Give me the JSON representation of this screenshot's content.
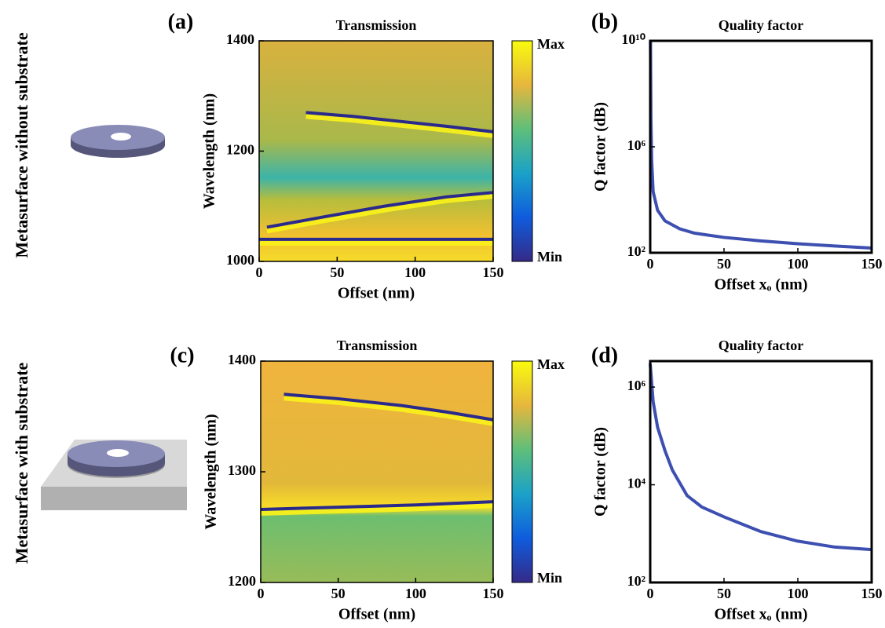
{
  "row_labels": [
    "Metasurface without substrate",
    "Metasurface with substrate"
  ],
  "chart_data": [
    {
      "type": "heatmap",
      "panel": "(a)",
      "title": "Transmission",
      "xlabel": "Offset (nm)",
      "ylabel": "Wavelength (nm)",
      "xlim": [
        0,
        150
      ],
      "ylim": [
        1000,
        1400
      ],
      "xticks": [
        0,
        50,
        100,
        150
      ],
      "yticks": [
        1000,
        1200,
        1400
      ],
      "colorbar": [
        "Max",
        "Min"
      ],
      "series": [
        {
          "color": "#2a2a8c",
          "x": [
            30,
            60,
            90,
            120,
            150
          ],
          "values": [
            1270,
            1263,
            1254,
            1245,
            1235
          ]
        },
        {
          "color": "#2a2a8c",
          "x": [
            5,
            40,
            80,
            120,
            150
          ],
          "values": [
            1062,
            1080,
            1100,
            1117,
            1125
          ]
        },
        {
          "color": "#2a2a8c",
          "x": [
            0,
            150
          ],
          "values": [
            1040,
            1040
          ]
        }
      ]
    },
    {
      "type": "line",
      "panel": "(b)",
      "title": "Quality factor",
      "xlabel": "Offset xₒ (nm)",
      "ylabel": "Q factor (dB)",
      "log_y": true,
      "xlim": [
        0,
        150
      ],
      "ylim": [
        100,
        10000000000
      ],
      "xticks": [
        0,
        50,
        100,
        150
      ],
      "yticks": [
        {
          "value": 100,
          "label": "10²"
        },
        {
          "value": 1000000,
          "label": "10⁶"
        },
        {
          "value": 10000000000,
          "label": "10¹⁰"
        }
      ],
      "series": [
        {
          "color": "#3d4fb0",
          "x": [
            0.2,
            0.5,
            1,
            2,
            5,
            10,
            20,
            30,
            50,
            75,
            100,
            125,
            150
          ],
          "values": [
            10000000000,
            10000000,
            300000,
            20000,
            4000,
            1600,
            800,
            550,
            380,
            280,
            220,
            180,
            150
          ]
        }
      ]
    },
    {
      "type": "heatmap",
      "panel": "(c)",
      "title": "Transmission",
      "xlabel": "Offset (nm)",
      "ylabel": "Wavelength (nm)",
      "xlim": [
        0,
        150
      ],
      "ylim": [
        1200,
        1400
      ],
      "xticks": [
        0,
        50,
        100,
        150
      ],
      "yticks": [
        1200,
        1300,
        1400
      ],
      "colorbar": [
        "Max",
        "Min"
      ],
      "series": [
        {
          "color": "#2a2a8c",
          "x": [
            15,
            50,
            90,
            120,
            150
          ],
          "values": [
            1370,
            1366,
            1360,
            1354,
            1347
          ]
        },
        {
          "color": "#2a2a8c",
          "x": [
            0,
            50,
            100,
            150
          ],
          "values": [
            1266,
            1268,
            1270,
            1273
          ]
        }
      ]
    },
    {
      "type": "line",
      "panel": "(d)",
      "title": "Quality factor",
      "xlabel": "Offset xₒ (nm)",
      "ylabel": "Q factor (dB)",
      "log_y": true,
      "xlim": [
        0,
        150
      ],
      "ylim": [
        100,
        3400000
      ],
      "xticks": [
        0,
        50,
        100,
        150
      ],
      "yticks": [
        {
          "value": 100,
          "label": "10²"
        },
        {
          "value": 10000,
          "label": "10⁴"
        },
        {
          "value": 1000000,
          "label": "10⁶"
        }
      ],
      "series": [
        {
          "color": "#3d4fb0",
          "x": [
            0,
            2,
            5,
            10,
            15,
            25,
            35,
            50,
            75,
            100,
            125,
            150
          ],
          "values": [
            3000000,
            500000,
            150000,
            50000,
            20000,
            6000,
            3500,
            2200,
            1100,
            700,
            530,
            470
          ]
        }
      ]
    }
  ]
}
